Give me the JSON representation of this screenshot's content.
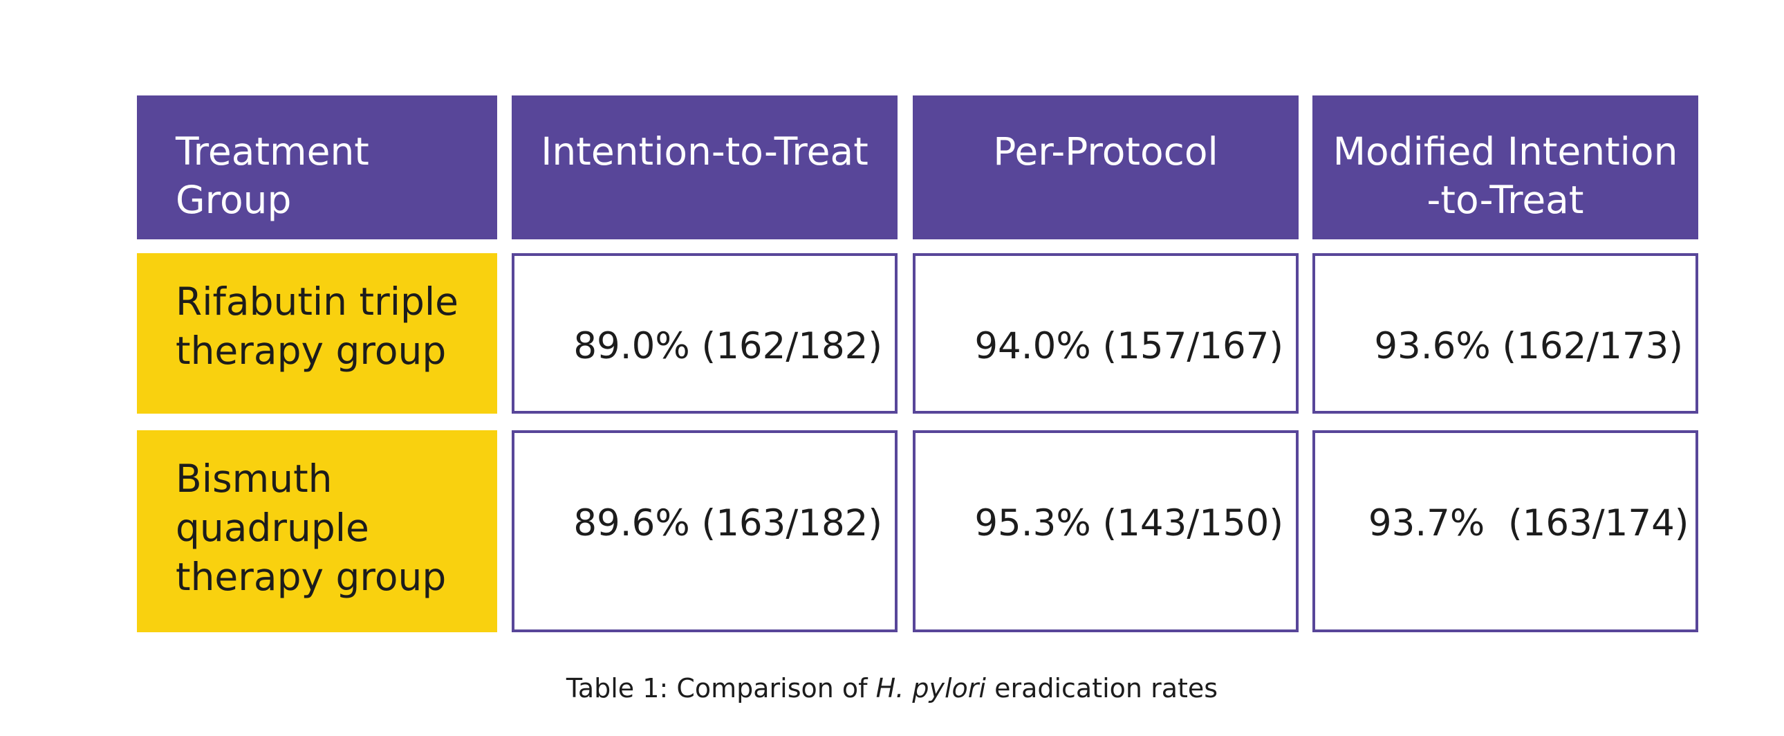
{
  "table": {
    "headers": [
      "Treatment\nGroup",
      "Intention-to-Treat",
      "Per-Protocol",
      "Modified Intention\n-to-Treat"
    ],
    "rows": [
      {
        "group": "Rifabutin triple\ntherapy group",
        "itt": "89.0% (162/182)",
        "pp": "94.0% (157/167)",
        "mitt": "93.6% (162/173)"
      },
      {
        "group": "Bismuth\nquadruple\ntherapy group",
        "itt": "89.6% (163/182)",
        "pp": "95.3% (143/150)",
        "mitt": "93.7%  (163/174)"
      }
    ]
  },
  "caption": {
    "prefix": "Table 1: Comparison of ",
    "italic": "H. pylori",
    "suffix": " eradication rates"
  },
  "colors": {
    "header_bg": "#584699",
    "group_bg": "#f9d10f",
    "cell_border": "#584699"
  }
}
